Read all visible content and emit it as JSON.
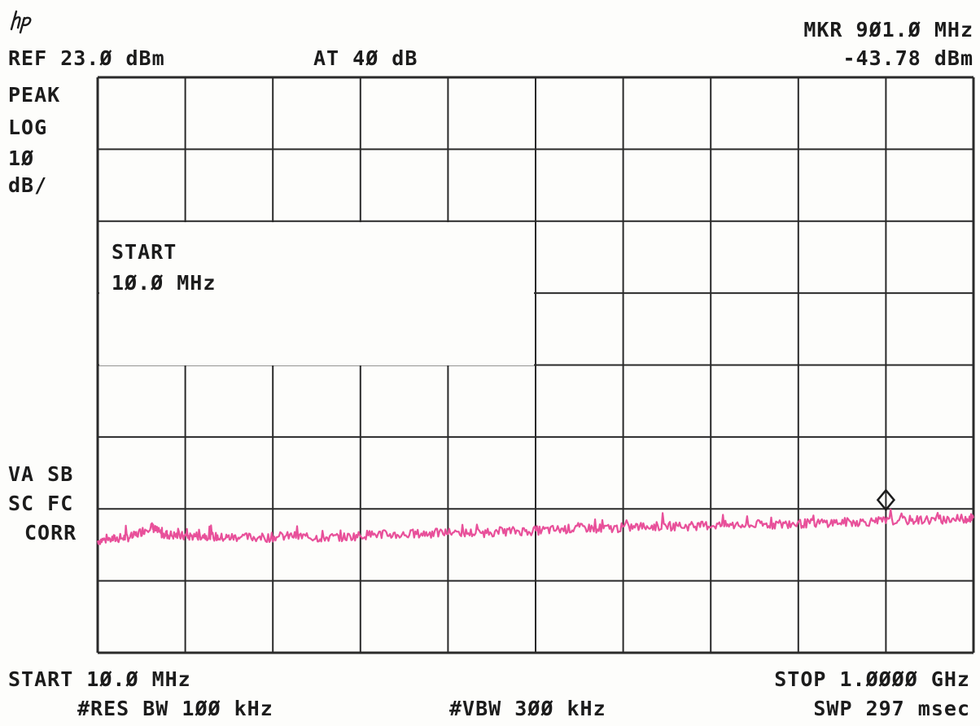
{
  "header": {
    "ref": "REF 23.Ø dBm",
    "atten": "AT 4Ø dB",
    "marker_freq": "MKR 9Ø1.Ø MHz",
    "marker_level": "-43.78 dBm"
  },
  "left_panel": {
    "detector": "PEAK",
    "scale_mode": "LOG",
    "scale_value": "1Ø",
    "scale_unit": "dB/",
    "status_1": "VA SB",
    "status_2": "SC FC",
    "status_3": "CORR"
  },
  "start_box": {
    "line1": "START",
    "line2": "1Ø.Ø MHz"
  },
  "footer": {
    "start": "START 1Ø.Ø MHz",
    "stop": "STOP 1.ØØØØ GHz",
    "res_bw": "#RES BW 1ØØ kHz",
    "vbw": "#VBW 3ØØ kHz",
    "sweep": "SWP 297 msec"
  },
  "logo": "hp-logo",
  "colors": {
    "trace": "#e8509a",
    "grid": "#2a2a2a"
  },
  "chart_data": {
    "type": "line",
    "x_unit": "MHz",
    "y_unit": "dBm",
    "xlim": [
      10,
      1000
    ],
    "ylim": [
      -77,
      23
    ],
    "y_scale_db_per_div": 10,
    "divisions": [
      10,
      8
    ],
    "grid": true,
    "series": [
      {
        "x": [
          10,
          30,
          50,
          70,
          80,
          90,
          110,
          130,
          150,
          170,
          200,
          230,
          260,
          290,
          320,
          350,
          380,
          410,
          440,
          470,
          500,
          530,
          560,
          590,
          620,
          650,
          680,
          710,
          740,
          770,
          800,
          830,
          860,
          890,
          920,
          950,
          980,
          1000
        ],
        "y": [
          -57.5,
          -57.2,
          -56.8,
          -55.0,
          -56.2,
          -56.5,
          -56.8,
          -56.6,
          -57.0,
          -56.9,
          -57.0,
          -56.7,
          -57.0,
          -56.9,
          -56.4,
          -56.5,
          -56.3,
          -56.1,
          -56.2,
          -55.9,
          -55.8,
          -55.6,
          -55.3,
          -55.4,
          -55.1,
          -55.0,
          -55.0,
          -54.8,
          -54.9,
          -54.7,
          -54.6,
          -54.4,
          -54.3,
          -54.2,
          -54.0,
          -53.9,
          -53.8,
          -53.6
        ]
      }
    ],
    "marker": {
      "x": 901,
      "y": -43.78
    }
  }
}
